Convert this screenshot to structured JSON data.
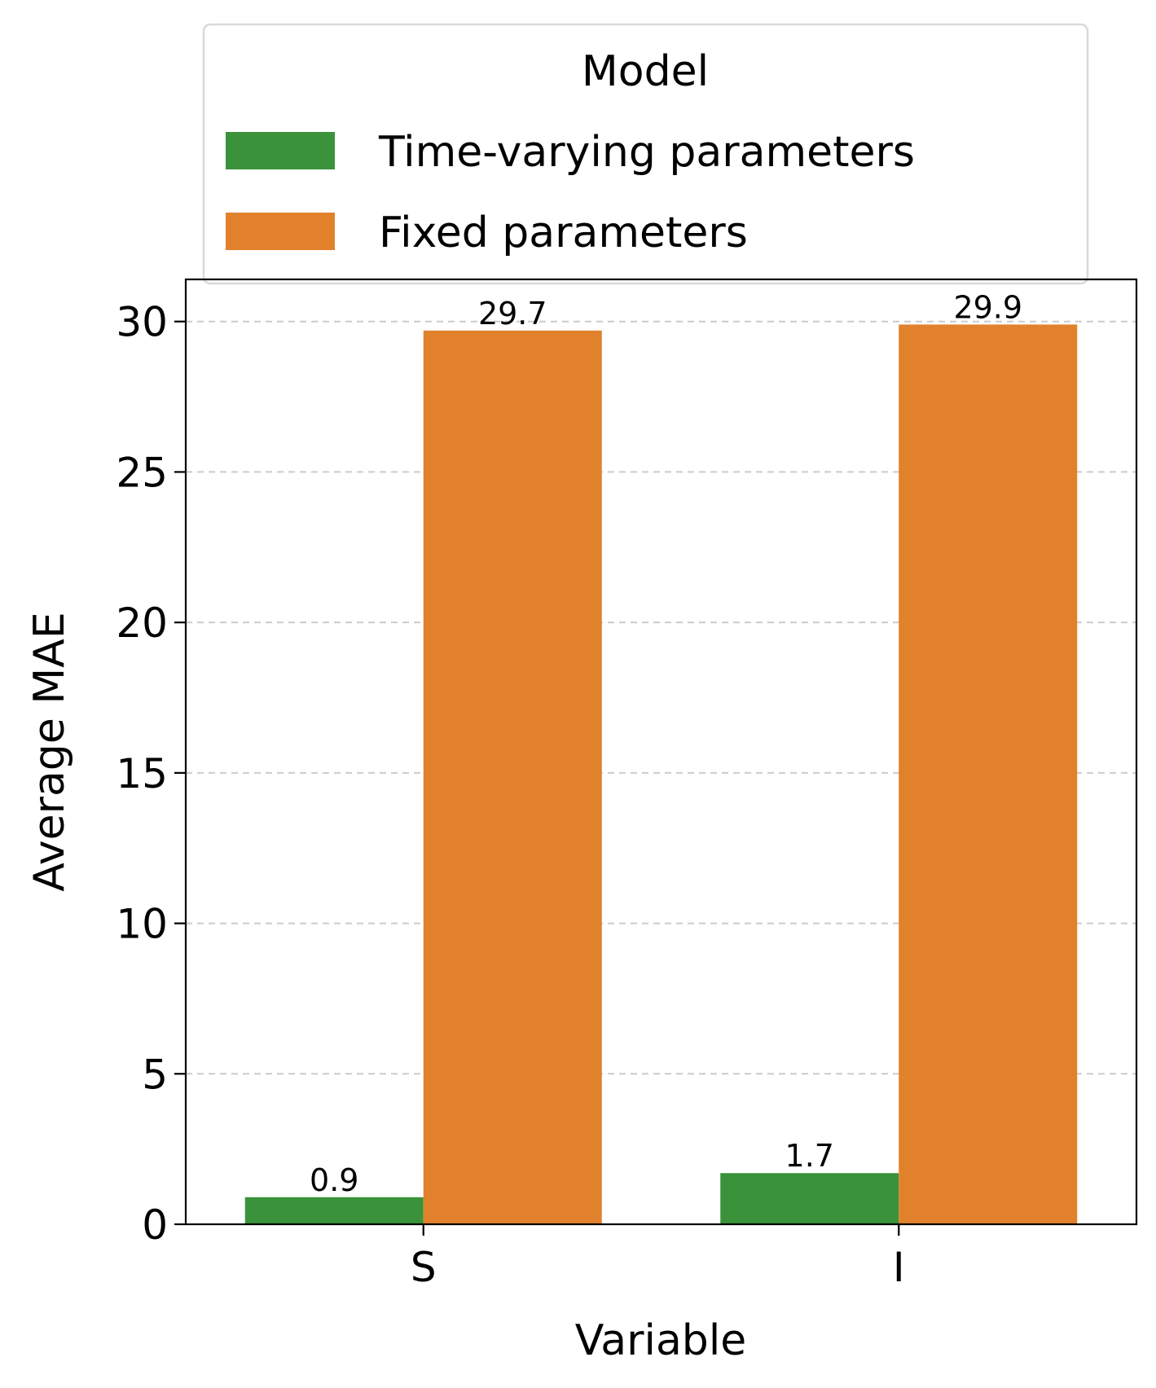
{
  "chart_data": {
    "type": "bar",
    "title": "",
    "xlabel": "Variable",
    "ylabel": "Average MAE",
    "categories": [
      "S",
      "I"
    ],
    "series": [
      {
        "name": "Time-varying parameters",
        "values": [
          0.9,
          1.7
        ],
        "labels": [
          "0.9",
          "1.7"
        ],
        "color": "#3a923a"
      },
      {
        "name": "Fixed parameters",
        "values": [
          29.7,
          29.9
        ],
        "labels": [
          "29.7",
          "29.9"
        ],
        "color": "#e1812c"
      }
    ],
    "ylim": [
      0,
      31.4
    ],
    "yticks": [
      0,
      5,
      10,
      15,
      20,
      25,
      30
    ],
    "grid": "y-dashed",
    "legend": {
      "title": "Model",
      "placement": "top-center-outside"
    }
  }
}
